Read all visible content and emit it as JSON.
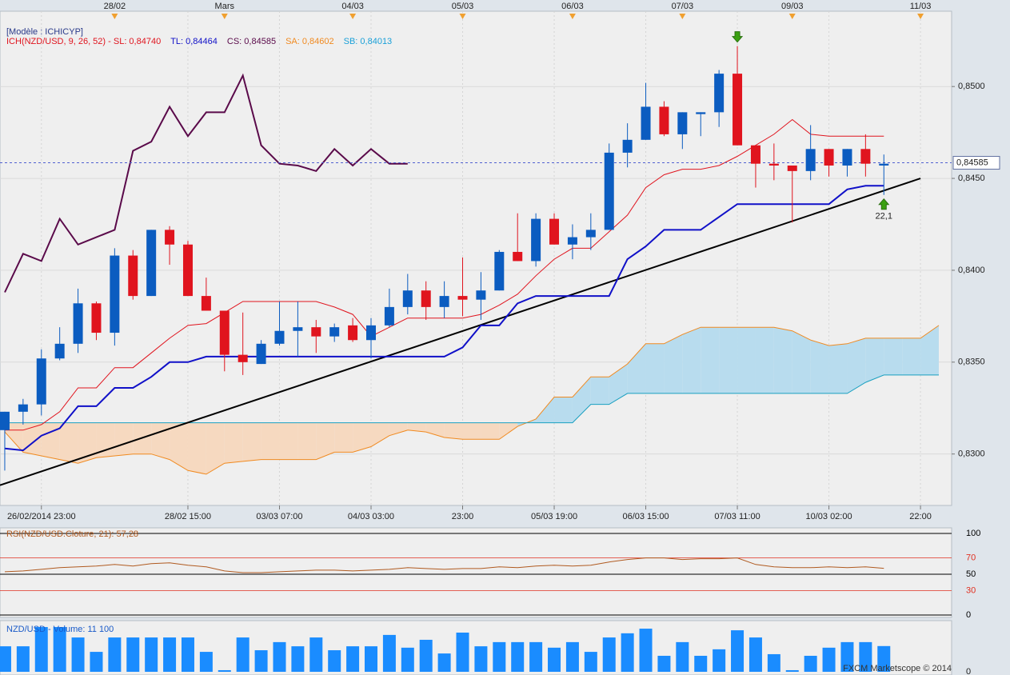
{
  "chart_data": [
    {
      "type": "candlestick",
      "model_label": "[Modèle : ICHICYP]",
      "legend": [
        {
          "text": "ICH(NZD/USD, 9, 26, 52) -  SL: 0,84740",
          "color": "#e0141e"
        },
        {
          "text": "TL: 0,84464",
          "color": "#1010c8"
        },
        {
          "text": "CS: 0,84585",
          "color": "#5a0a4a"
        },
        {
          "text": "SA: 0,84602",
          "color": "#f08a20"
        },
        {
          "text": "SB: 0,84013",
          "color": "#1aa0d8"
        }
      ],
      "categories": [
        null,
        null,
        "26/02/2014 23:00",
        null,
        null,
        null,
        null,
        null,
        null,
        null,
        "28/02 15:00",
        null,
        null,
        null,
        null,
        "03/03 07:00",
        null,
        null,
        null,
        null,
        "04/03 03:00",
        null,
        null,
        null,
        null,
        "23:00",
        null,
        null,
        null,
        null,
        "05/03 19:00",
        null,
        null,
        null,
        null,
        "06/03 15:00",
        null,
        null,
        null,
        null,
        "07/03 11:00",
        null,
        null,
        null,
        null,
        "10/03 02:00",
        null,
        null,
        null,
        null,
        "22:00",
        null
      ],
      "top_categories": [
        null,
        null,
        null,
        null,
        null,
        null,
        "28/02",
        null,
        null,
        null,
        null,
        null,
        "Mars",
        null,
        null,
        null,
        null,
        null,
        null,
        "04/03",
        null,
        null,
        null,
        null,
        null,
        "05/03",
        null,
        null,
        null,
        null,
        null,
        "06/03",
        null,
        null,
        null,
        null,
        null,
        "07/03",
        null,
        null,
        null,
        null,
        null,
        "09/03",
        null,
        null,
        null,
        null,
        null,
        null,
        "11/03",
        null
      ],
      "open": [
        0.8313,
        0.8323,
        0.8327,
        0.8352,
        0.836,
        0.8382,
        0.8366,
        0.8408,
        0.8386,
        0.8422,
        0.8414,
        0.8386,
        0.8378,
        0.8354,
        0.8349,
        0.836,
        0.8367,
        0.8369,
        0.8364,
        0.837,
        0.8362,
        0.837,
        0.838,
        0.8389,
        0.838,
        0.8386,
        0.8384,
        0.8389,
        0.841,
        0.8405,
        0.8428,
        0.8414,
        0.8418,
        0.8422,
        0.8464,
        0.8471,
        0.8489,
        0.8474,
        0.8485,
        0.8486,
        0.8507,
        0.8468,
        0.8458,
        0.8457,
        0.8454,
        0.8466,
        0.8457,
        0.8466,
        0.8457,
        null,
        null,
        null
      ],
      "high": [
        0.8323,
        0.833,
        0.8357,
        0.8369,
        0.839,
        0.8383,
        0.8412,
        0.8411,
        0.8422,
        0.8424,
        0.8416,
        0.8396,
        0.8378,
        0.8377,
        0.8362,
        0.8383,
        0.8383,
        0.8373,
        0.8371,
        0.8374,
        0.8374,
        0.839,
        0.8398,
        0.8394,
        0.8394,
        0.8407,
        0.8399,
        0.8411,
        0.8431,
        0.8431,
        0.8431,
        0.8425,
        0.8431,
        0.8469,
        0.848,
        0.8502,
        0.8492,
        0.8486,
        0.8486,
        0.8509,
        0.8522,
        0.8468,
        0.8469,
        0.8457,
        0.8479,
        0.8466,
        0.8466,
        0.8474,
        0.8463,
        null,
        null,
        null
      ],
      "low": [
        0.8291,
        0.8316,
        0.8321,
        0.8351,
        0.8355,
        0.8362,
        0.8359,
        0.8384,
        0.8386,
        0.8403,
        0.8386,
        0.8378,
        0.8345,
        0.8343,
        0.8349,
        0.8359,
        0.8353,
        0.8355,
        0.8361,
        0.8361,
        0.8352,
        0.8369,
        0.8376,
        0.8373,
        0.8374,
        0.8375,
        0.8373,
        0.8389,
        0.8405,
        0.8402,
        0.8414,
        0.8406,
        0.8411,
        0.8422,
        0.8456,
        0.8471,
        0.8473,
        0.8466,
        0.8473,
        0.8478,
        0.8468,
        0.8445,
        0.8449,
        0.8426,
        0.8449,
        0.8451,
        0.8451,
        0.8451,
        0.8441,
        null,
        null,
        null
      ],
      "close": [
        0.8323,
        0.8327,
        0.8352,
        0.836,
        0.8382,
        0.8366,
        0.8408,
        0.8386,
        0.8422,
        0.8414,
        0.8386,
        0.8378,
        0.8354,
        0.835,
        0.836,
        0.8367,
        0.8369,
        0.8364,
        0.8369,
        0.8362,
        0.837,
        0.838,
        0.8389,
        0.838,
        0.8386,
        0.8384,
        0.8389,
        0.841,
        0.8405,
        0.8428,
        0.8414,
        0.8418,
        0.8422,
        0.8464,
        0.8471,
        0.8489,
        0.8474,
        0.8486,
        0.8486,
        0.8507,
        0.8468,
        0.8458,
        0.8457,
        0.8454,
        0.8466,
        0.8457,
        0.8466,
        0.8458,
        0.8458,
        null,
        null,
        null
      ],
      "up_color": "#0b5cc0",
      "down_color": "#e0141e",
      "lines": [
        {
          "color": "#e0141e",
          "values": [
            0.8313,
            0.8313,
            0.8316,
            0.8323,
            0.8336,
            0.8336,
            0.8347,
            0.8347,
            0.8355,
            0.8363,
            0.837,
            0.8371,
            0.8377,
            0.8383,
            0.8383,
            0.8383,
            0.8383,
            0.8383,
            0.838,
            0.8376,
            0.8364,
            0.8369,
            0.8374,
            0.8374,
            0.8374,
            0.8374,
            0.8376,
            0.8381,
            0.8387,
            0.8397,
            0.8406,
            0.8412,
            0.8412,
            0.8421,
            0.843,
            0.8445,
            0.8452,
            0.8455,
            0.8455,
            0.8457,
            0.8462,
            0.8468,
            0.8474,
            0.8482,
            0.8474,
            0.8473,
            0.8473,
            0.8473,
            0.8473,
            null,
            null,
            null
          ]
        },
        {
          "color": "#1010c8",
          "values": [
            0.8303,
            0.8302,
            0.831,
            0.8314,
            0.8326,
            0.8326,
            0.8336,
            0.8336,
            0.8342,
            0.835,
            0.835,
            0.8353,
            0.8353,
            0.8353,
            0.8353,
            0.8353,
            0.8353,
            0.8353,
            0.8353,
            0.8353,
            0.8353,
            0.8353,
            0.8353,
            0.8353,
            0.8353,
            0.8358,
            0.837,
            0.837,
            0.8382,
            0.8386,
            0.8386,
            0.8386,
            0.8386,
            0.8386,
            0.8406,
            0.8413,
            0.8422,
            0.8422,
            0.8422,
            0.8429,
            0.8436,
            0.8436,
            0.8436,
            0.8436,
            0.8436,
            0.8436,
            0.8444,
            0.8446,
            0.8446,
            null,
            null,
            null
          ]
        },
        {
          "color": "#5a0a4a",
          "values": [
            0.8388,
            0.8409,
            0.8405,
            0.8428,
            0.8414,
            0.8418,
            0.8422,
            0.8465,
            0.847,
            0.8489,
            0.8473,
            0.8486,
            0.8486,
            0.8506,
            0.8468,
            0.8458,
            0.8457,
            0.8454,
            0.8466,
            0.8457,
            0.8466,
            0.8458,
            0.8458,
            null,
            null,
            null,
            null,
            null,
            null,
            null,
            null,
            null,
            null,
            null,
            null,
            null,
            null,
            null,
            null,
            null,
            null,
            null,
            null,
            null,
            null,
            null,
            null,
            null,
            null,
            null,
            null,
            null
          ]
        }
      ],
      "cloud": {
        "span_a": {
          "color": "#f08a20",
          "values": [
            0.8312,
            0.8301,
            0.8299,
            0.8297,
            0.8295,
            0.8298,
            0.8299,
            0.83,
            0.83,
            0.8297,
            0.8291,
            0.8289,
            0.8295,
            0.8296,
            0.8297,
            0.8297,
            0.8297,
            0.8297,
            0.8301,
            0.8301,
            0.8304,
            0.831,
            0.8313,
            0.8312,
            0.8309,
            0.8308,
            0.8308,
            0.8308,
            0.8315,
            0.8319,
            0.8331,
            0.8331,
            0.8342,
            0.8342,
            0.8349,
            0.836,
            0.836,
            0.8365,
            0.8369,
            0.8369,
            0.8369,
            0.8369,
            0.8369,
            0.8367,
            0.8362,
            0.8359,
            0.836,
            0.8363,
            0.8363,
            0.8363,
            0.8363,
            0.837
          ]
        },
        "span_b": {
          "color": "#1aa0c0",
          "values": [
            0.8317,
            0.8317,
            0.8317,
            0.8317,
            0.8317,
            0.8317,
            0.8317,
            0.8317,
            0.8317,
            0.8317,
            0.8317,
            0.8317,
            0.8317,
            0.8317,
            0.8317,
            0.8317,
            0.8317,
            0.8317,
            0.8317,
            0.8317,
            0.8317,
            0.8317,
            0.8317,
            0.8317,
            0.8317,
            0.8317,
            0.8317,
            0.8317,
            0.8317,
            0.8317,
            0.8317,
            0.8317,
            0.8327,
            0.8327,
            0.8333,
            0.8333,
            0.8333,
            0.8333,
            0.8333,
            0.8333,
            0.8333,
            0.8333,
            0.8333,
            0.8333,
            0.8333,
            0.8333,
            0.8333,
            0.8339,
            0.8343,
            0.8343,
            0.8343,
            0.8343
          ]
        },
        "up_color": "#b8dcee",
        "down_color": "#f6d9c0"
      },
      "trendline": {
        "x": [
          -0.26,
          50
        ],
        "values": [
          0.8283,
          0.845
        ],
        "color": "#000000"
      },
      "last_price": 0.84585,
      "last_price_label": "0,84585",
      "signals": [
        {
          "index": 40,
          "direction": "down"
        },
        {
          "index": 48,
          "direction": "up",
          "label": "22,1"
        }
      ],
      "xlim": [
        -0.26,
        51.7
      ],
      "ylim": [
        0.8272,
        0.8541
      ],
      "yticks": [
        {
          "value": 0.83,
          "label": "0,8300"
        },
        {
          "value": 0.835,
          "label": "0,8350"
        },
        {
          "value": 0.84,
          "label": "0,8400"
        },
        {
          "value": 0.845,
          "label": "0,8450"
        },
        {
          "value": 0.85,
          "label": "0,8500"
        }
      ],
      "grid": true
    },
    {
      "type": "line",
      "title": "RSI(NZD/USD.Cloture, 21): 57,28",
      "color": "#b05a20",
      "values": [
        53,
        54,
        56,
        58,
        59,
        60,
        62,
        60,
        63,
        64,
        61,
        59,
        54,
        52,
        52,
        53,
        54,
        55,
        55,
        54,
        55,
        56,
        58,
        57,
        56,
        57,
        57,
        59,
        58,
        60,
        61,
        60,
        61,
        65,
        68,
        70,
        70,
        68,
        69,
        69,
        70,
        62,
        59,
        58,
        58,
        59,
        58,
        59,
        57.28
      ],
      "xlim": [
        -0.26,
        51.7
      ],
      "ylim": [
        0,
        100
      ],
      "yticks": [
        0,
        30,
        50,
        70,
        100
      ],
      "tick_colors": [
        "#000000",
        "#e03020",
        "#000000",
        "#e03020",
        "#000000"
      ]
    },
    {
      "type": "bar",
      "title": "NZD/USD - Volume: 11 100",
      "color": "#1a8cff",
      "values": [
        11000,
        11000,
        19300,
        19300,
        14800,
        8600,
        14800,
        14800,
        14800,
        14800,
        14800,
        8600,
        700,
        14800,
        9300,
        12800,
        11000,
        14800,
        9300,
        11000,
        11000,
        15900,
        10400,
        13800,
        7900,
        16900,
        11000,
        12800,
        12800,
        12800,
        10400,
        12800,
        8600,
        14800,
        16600,
        18600,
        6900,
        12800,
        6900,
        9700,
        17900,
        14800,
        7600,
        700,
        6900,
        10400,
        12800,
        12800,
        11100
      ],
      "xlim": [
        -0.26,
        51.7
      ],
      "ylim": [
        0,
        20000
      ],
      "yticks": [
        0
      ]
    }
  ],
  "watermark": "FXCM Marketscope © 2014"
}
